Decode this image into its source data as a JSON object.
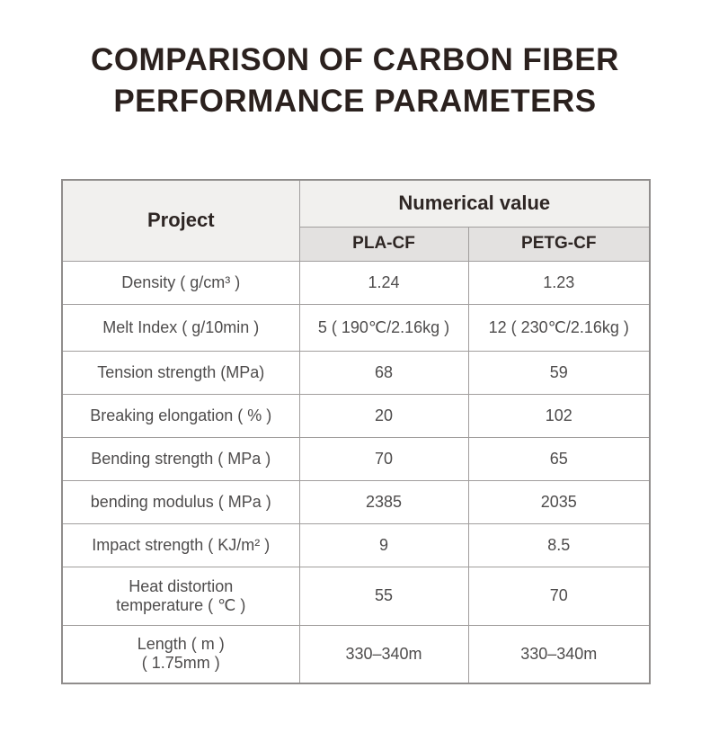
{
  "title": {
    "line1": "COMPARISON OF CARBON FIBER",
    "line2": "PERFORMANCE PARAMETERS"
  },
  "table": {
    "project_header": "Project",
    "group_header": "Numerical value",
    "columns": [
      "PLA-CF",
      "PETG-CF"
    ],
    "rows": [
      {
        "label": "Density ( g/cm³ )",
        "pla": "1.24",
        "petg": "1.23"
      },
      {
        "label": "Melt Index ( g/10min )",
        "pla": "5 ( 190℃/2.16kg )",
        "petg": "12 ( 230℃/2.16kg )"
      },
      {
        "label": "Tension strength (MPa)",
        "pla": "68",
        "petg": "59"
      },
      {
        "label": "Breaking elongation ( % )",
        "pla": "20",
        "petg": "102"
      },
      {
        "label": "Bending strength ( MPa )",
        "pla": "70",
        "petg": "65"
      },
      {
        "label": "bending modulus ( MPa )",
        "pla": "2385",
        "petg": "2035"
      },
      {
        "label": "Impact strength ( KJ/m² )",
        "pla": "9",
        "petg": "8.5"
      },
      {
        "label": "Heat distortion\ntemperature ( ℃ )",
        "pla": "55",
        "petg": "70"
      },
      {
        "label": "Length ( m )\n( 1.75mm )",
        "pla": "330–340m",
        "petg": "330–340m"
      }
    ]
  },
  "colors": {
    "title": "#2b211e",
    "header_text": "#2e2624",
    "body_text": "#4e4c4c",
    "header_bg": "#f1f0ee",
    "subheader_bg": "#e3e1e0",
    "border": "#a19e9d",
    "page_bg": "#ffffff"
  }
}
